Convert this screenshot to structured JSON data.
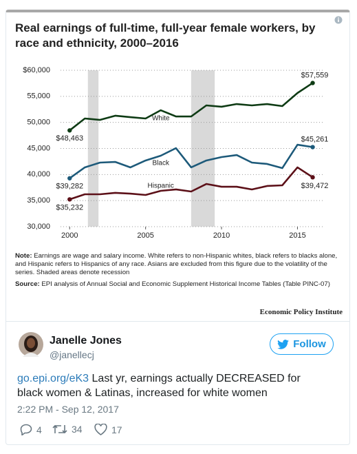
{
  "chart_data": {
    "type": "line",
    "title": "Real earnings of full-time, full-year female workers, by race and ethnicity, 2000–2016",
    "x": [
      2000,
      2001,
      2002,
      2003,
      2004,
      2005,
      2006,
      2007,
      2008,
      2009,
      2010,
      2011,
      2012,
      2013,
      2014,
      2015,
      2016
    ],
    "xlim": [
      1999.4,
      2016.7
    ],
    "xticks": [
      2000,
      2005,
      2010,
      2015
    ],
    "ylim": [
      30000,
      60000
    ],
    "yticks": [
      {
        "value": 30000,
        "label": "30,000"
      },
      {
        "value": 35000,
        "label": "35,000"
      },
      {
        "value": 40000,
        "label": "40,000"
      },
      {
        "value": 45000,
        "label": "45,000"
      },
      {
        "value": 50000,
        "label": "50,000"
      },
      {
        "value": 55000,
        "label": "55,000"
      },
      {
        "value": 60000,
        "label": "$60,000"
      }
    ],
    "grid": true,
    "shaded": [
      [
        2001.2,
        2001.9
      ],
      [
        2008,
        2009.55
      ]
    ],
    "series": [
      {
        "name": "White",
        "color": "#0e3b14",
        "values": [
          48463,
          50750,
          50480,
          51280,
          51000,
          50750,
          52330,
          51140,
          51140,
          53260,
          53000,
          53520,
          53260,
          53520,
          53130,
          55640,
          57559
        ],
        "value_labels": [
          "$48,463",
          null,
          null,
          null,
          null,
          null,
          null,
          null,
          null,
          null,
          null,
          null,
          null,
          null,
          null,
          null,
          "$57,559"
        ]
      },
      {
        "name": "Black",
        "color": "#1d5a7a",
        "values": [
          39282,
          41370,
          42290,
          42420,
          41370,
          42690,
          43610,
          45060,
          41370,
          42690,
          43350,
          43740,
          42290,
          42030,
          41230,
          45720,
          45261
        ],
        "value_labels": [
          "$39,282",
          null,
          null,
          null,
          null,
          null,
          null,
          null,
          null,
          null,
          null,
          null,
          null,
          null,
          null,
          null,
          "$45,261"
        ]
      },
      {
        "name": "Hispanic",
        "color": "#5c1018",
        "values": [
          35232,
          36210,
          36210,
          36480,
          36340,
          36080,
          36870,
          37140,
          36740,
          38190,
          37660,
          37660,
          37140,
          37800,
          37930,
          41370,
          39472
        ],
        "value_labels": [
          "$35,232",
          null,
          null,
          null,
          null,
          null,
          null,
          null,
          null,
          null,
          null,
          null,
          null,
          null,
          null,
          null,
          "$39,472"
        ]
      }
    ],
    "note_label": "Note:",
    "note": "Earnings are wage and salary income. White refers to non-Hispanic whites, black refers to blacks alone, and Hispanic refers to Hispanics of any race. Asians are excluded from this figure due to the volatility of the series. Shaded areas denote recession",
    "source_label": "Source:",
    "source": "EPI analysis of Annual Social and Economic Supplement Historical Income Tables (Table PINC-07)",
    "credit": "Economic Policy Institute"
  },
  "tweet": {
    "name": "Janelle Jones",
    "handle": "@janellecj",
    "follow": "Follow",
    "link": "go.epi.org/eK3",
    "text": "Last yr, earnings actually DECREASED for black women & Latinas, increased for white women",
    "time": "2:22 PM - Sep 12, 2017",
    "replies": "4",
    "retweets": "34",
    "likes": "17"
  }
}
